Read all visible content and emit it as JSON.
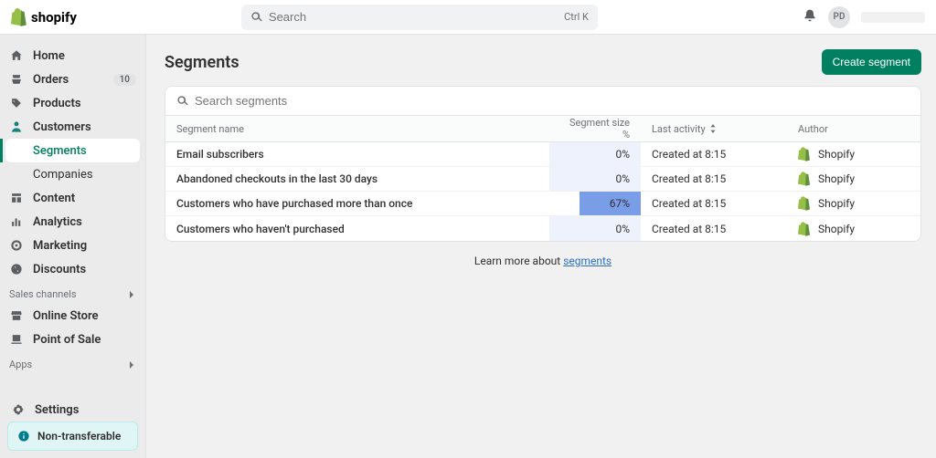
{
  "brand": "shopify",
  "search": {
    "placeholder": "Search",
    "shortcut": "Ctrl K"
  },
  "avatar_initials": "PD",
  "sidebar": {
    "items": [
      {
        "label": "Home"
      },
      {
        "label": "Orders",
        "badge": "10"
      },
      {
        "label": "Products"
      },
      {
        "label": "Customers",
        "children": [
          {
            "label": "Segments",
            "active": true
          },
          {
            "label": "Companies"
          }
        ]
      },
      {
        "label": "Content"
      },
      {
        "label": "Analytics"
      },
      {
        "label": "Marketing"
      },
      {
        "label": "Discounts"
      }
    ],
    "sales_channels": {
      "title": "Sales channels",
      "items": [
        {
          "label": "Online Store"
        },
        {
          "label": "Point of Sale"
        }
      ]
    },
    "apps_title": "Apps",
    "settings_label": "Settings",
    "non_transferable": "Non-transferable"
  },
  "page": {
    "title": "Segments",
    "create_btn": "Create segment",
    "search_placeholder": "Search segments",
    "columns": {
      "name": "Segment name",
      "size": "Segment size %",
      "activity": "Last activity",
      "author": "Author"
    },
    "size_bar_color_zero": "#eef2fc",
    "size_bar_color_fill": "#7a9de8",
    "rows": [
      {
        "name": "Email subscribers",
        "size_pct": 0,
        "size_txt": "0%",
        "activity": "Created at 8:15",
        "author": "Shopify"
      },
      {
        "name": "Abandoned checkouts in the last 30 days",
        "size_pct": 0,
        "size_txt": "0%",
        "activity": "Created at 8:15",
        "author": "Shopify"
      },
      {
        "name": "Customers who have purchased more than once",
        "size_pct": 67,
        "size_txt": "67%",
        "activity": "Created at 8:15",
        "author": "Shopify"
      },
      {
        "name": "Customers who haven't purchased",
        "size_pct": 0,
        "size_txt": "0%",
        "activity": "Created at 8:15",
        "author": "Shopify"
      }
    ],
    "learn_more_prefix": "Learn more about ",
    "learn_more_link": "segments"
  }
}
